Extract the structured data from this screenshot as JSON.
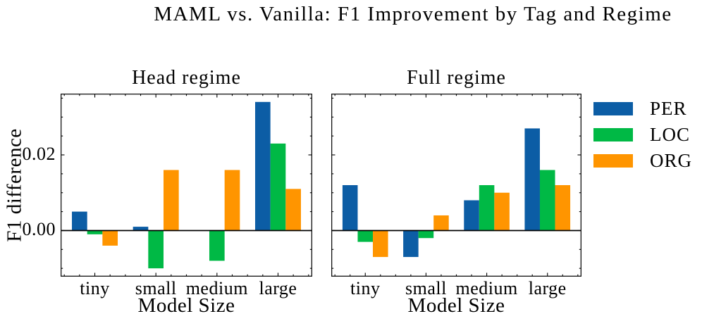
{
  "title": "MAML vs. Vanilla: F1 Improvement by Tag and Regime",
  "legend": {
    "position": "right-outside",
    "entries": [
      {
        "label": "PER",
        "color": "#0C5DA5"
      },
      {
        "label": "LOC",
        "color": "#00B945"
      },
      {
        "label": "ORG",
        "color": "#FF9500"
      }
    ]
  },
  "chart_data": [
    {
      "type": "bar",
      "title": "Head regime",
      "xlabel": "Model Size",
      "ylabel": "F1 difference",
      "categories": [
        "tiny",
        "small",
        "medium",
        "large"
      ],
      "series": [
        {
          "name": "PER",
          "color": "#0C5DA5",
          "values": [
            0.005,
            0.001,
            0.0,
            0.034
          ]
        },
        {
          "name": "LOC",
          "color": "#00B945",
          "values": [
            -0.001,
            -0.01,
            -0.008,
            0.023
          ]
        },
        {
          "name": "ORG",
          "color": "#FF9500",
          "values": [
            -0.004,
            0.016,
            0.016,
            0.011
          ]
        }
      ],
      "ylim": [
        -0.0122,
        0.0362
      ],
      "xlim": [
        -0.56,
        3.56
      ],
      "bar_width": 0.25,
      "yticks": [
        {
          "value": 0.0,
          "label": "0.00"
        },
        {
          "value": 0.02,
          "label": "0.02"
        }
      ],
      "y_minor_step": 0.005,
      "x_minor_step": 0.25,
      "show_ytick_labels": true,
      "grid": false,
      "zero_line": true
    },
    {
      "type": "bar",
      "title": "Full regime",
      "xlabel": "Model Size",
      "ylabel": "",
      "categories": [
        "tiny",
        "small",
        "medium",
        "large"
      ],
      "series": [
        {
          "name": "PER",
          "color": "#0C5DA5",
          "values": [
            0.012,
            -0.007,
            0.008,
            0.027
          ]
        },
        {
          "name": "LOC",
          "color": "#00B945",
          "values": [
            -0.003,
            -0.002,
            0.012,
            0.016
          ]
        },
        {
          "name": "ORG",
          "color": "#FF9500",
          "values": [
            -0.007,
            0.004,
            0.01,
            0.012
          ]
        }
      ],
      "ylim": [
        -0.0122,
        0.0362
      ],
      "xlim": [
        -0.56,
        3.56
      ],
      "bar_width": 0.25,
      "yticks": [
        {
          "value": 0.0,
          "label": "0.00"
        },
        {
          "value": 0.02,
          "label": "0.02"
        }
      ],
      "y_minor_step": 0.005,
      "x_minor_step": 0.25,
      "show_ytick_labels": false,
      "grid": false,
      "zero_line": true
    }
  ]
}
